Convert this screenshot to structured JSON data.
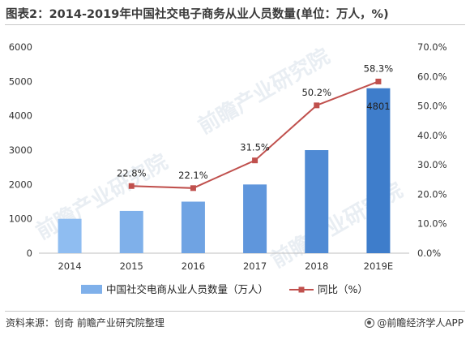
{
  "title": "图表2：2014-2019年中国社交电子商务从业人员数量(单位：万人，%)",
  "source": "资料来源：创奇 前瞻产业研究院整理",
  "brand": "@前瞻经济学人APP",
  "watermark": "前瞻产业研究院",
  "colors": {
    "bars": [
      "#8fbdf1",
      "#7fb0ea",
      "#6fa3e3",
      "#5f96dc",
      "#4f8ad4",
      "#3e7dcb"
    ],
    "line": "#c0504d"
  },
  "chart_data": {
    "type": "bar",
    "categories": [
      "2014",
      "2015",
      "2016",
      "2017",
      "2018",
      "2019E"
    ],
    "series": [
      {
        "name": "中国社交电商从业人员数量（万人）",
        "type": "bar",
        "axis": "left",
        "values": [
          1000,
          1230,
          1500,
          2000,
          3000,
          4801
        ]
      },
      {
        "name": "同比（%）",
        "type": "line",
        "axis": "right",
        "values": [
          null,
          22.8,
          22.1,
          31.5,
          50.2,
          58.3
        ]
      }
    ],
    "data_labels": {
      "bar": [
        "",
        "",
        "",
        "",
        "",
        "4801"
      ],
      "line": [
        "",
        "22.8%",
        "22.1%",
        "31.5%",
        "50.2%",
        "58.3%"
      ]
    },
    "ylim_left": [
      0,
      6000
    ],
    "yticks_left": [
      "0",
      "1000",
      "2000",
      "3000",
      "4000",
      "5000",
      "6000"
    ],
    "ylim_right": [
      0,
      70
    ],
    "yticks_right": [
      "0.0%",
      "10.0%",
      "20.0%",
      "30.0%",
      "40.0%",
      "50.0%",
      "60.0%",
      "70.0%"
    ],
    "grid": false,
    "legend_position": "bottom"
  }
}
